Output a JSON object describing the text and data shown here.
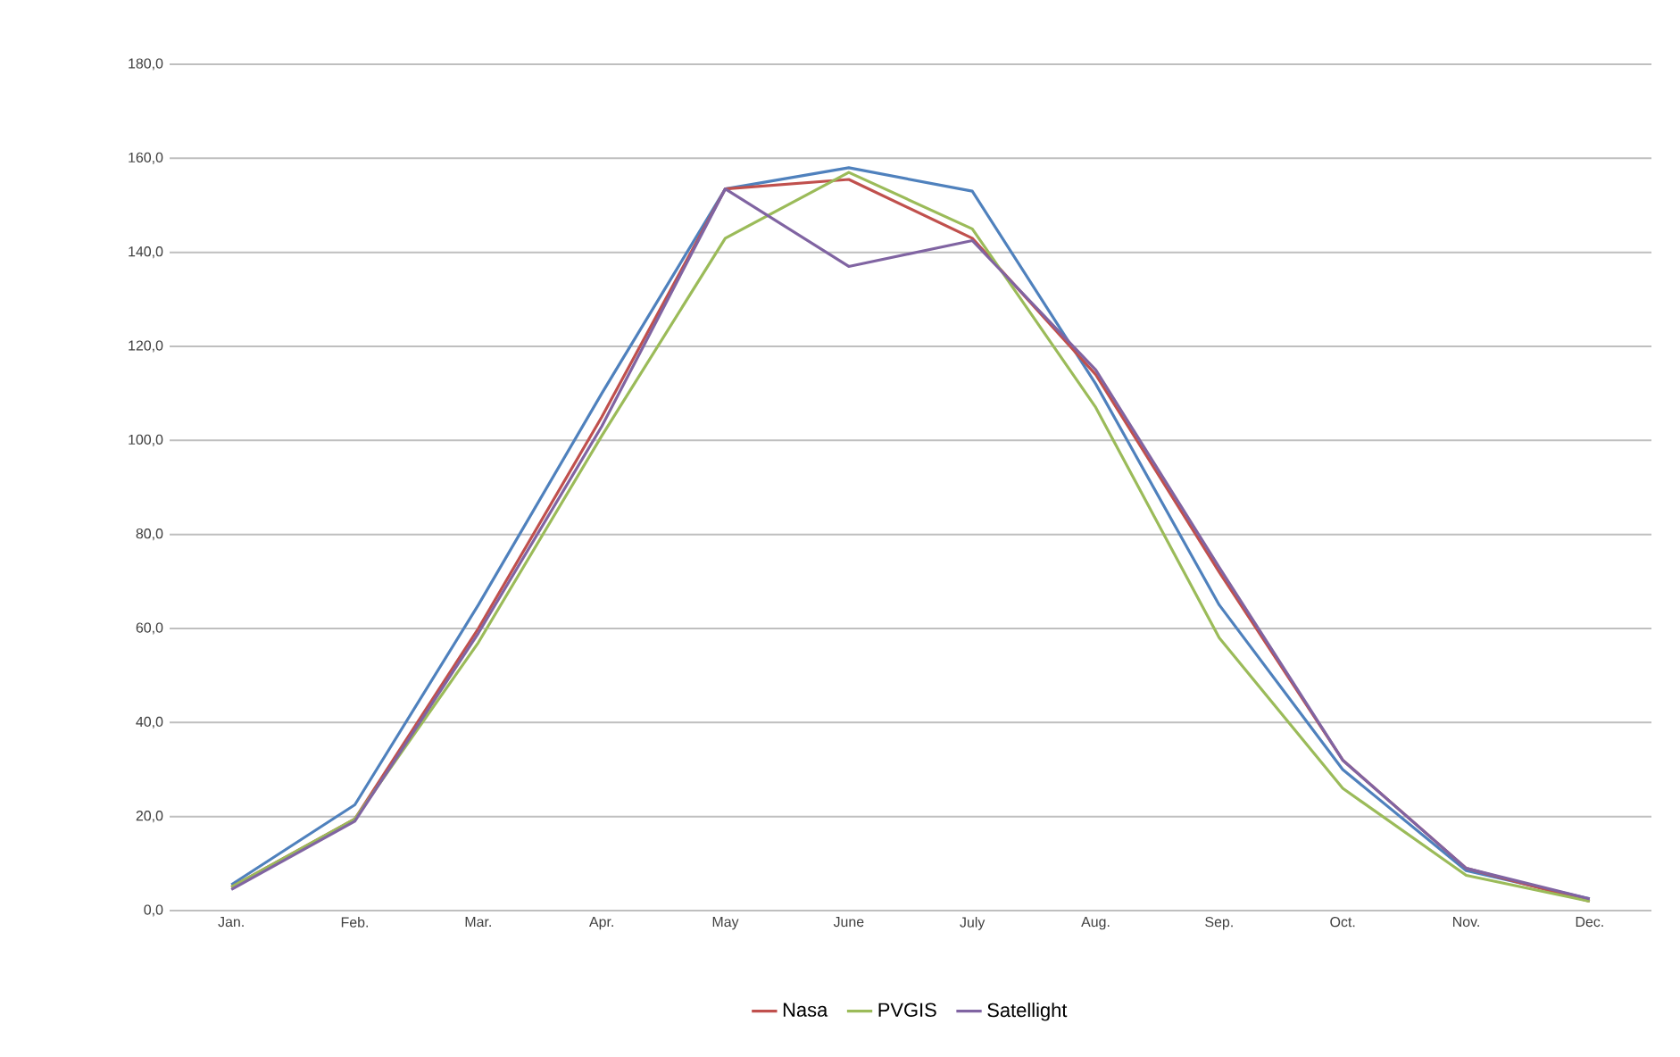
{
  "chart_data": {
    "type": "line",
    "categories": [
      "Jan.",
      "Feb.",
      "Mar.",
      "Apr.",
      "May",
      "June",
      "July",
      "Aug.",
      "Sep.",
      "Oct.",
      "Nov.",
      "Dec."
    ],
    "series": [
      {
        "color": "#4f81bd",
        "values": [
          5.5,
          22.5,
          65,
          110,
          153.5,
          158,
          153,
          112,
          65,
          30,
          8.5,
          2.5
        ]
      },
      {
        "name": "Nasa",
        "color": "#c0504d",
        "values": [
          5,
          19.5,
          60,
          105,
          153.5,
          155.5,
          143,
          114,
          72,
          32,
          9,
          2
        ]
      },
      {
        "name": "PVGIS",
        "color": "#9bbb59",
        "values": [
          5,
          19.5,
          57,
          101,
          143,
          157,
          145,
          107,
          58,
          26,
          7.5,
          2
        ]
      },
      {
        "name": "Satellight",
        "color": "#8064a2",
        "values": [
          4.5,
          19,
          59,
          103,
          153.5,
          137,
          142.5,
          115,
          73,
          32,
          9,
          2.5
        ]
      }
    ],
    "ylim": [
      0,
      180
    ],
    "yticks": [
      {
        "value": 0,
        "label": "0,0"
      },
      {
        "value": 20,
        "label": "20,0"
      },
      {
        "value": 40,
        "label": "40,0"
      },
      {
        "value": 60,
        "label": "60,0"
      },
      {
        "value": 80,
        "label": "80,0"
      },
      {
        "value": 100,
        "label": "100,0"
      },
      {
        "value": 120,
        "label": "120,0"
      },
      {
        "value": 140,
        "label": "140,0"
      },
      {
        "value": 160,
        "label": "160,0"
      },
      {
        "value": 180,
        "label": "180,0"
      }
    ],
    "grid": "y",
    "legend": "bottom",
    "marker": "none",
    "line_style": "solid"
  }
}
